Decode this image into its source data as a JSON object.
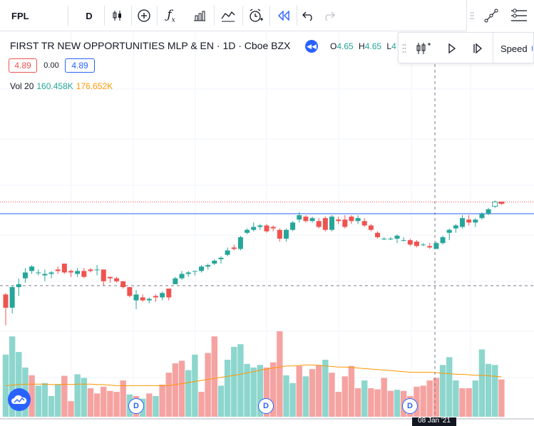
{
  "toolbar": {
    "symbol": "FPL",
    "interval": "D",
    "icons": [
      "candles-icon",
      "add-compare-icon",
      "indicators-icon",
      "financials-icon",
      "templates-icon",
      "alert-icon",
      "replay-icon",
      "undo-icon",
      "redo-icon"
    ]
  },
  "legend": {
    "title": "FIRST TR NEW OPPORTUNITIES MLP & EN · 1D · Cboe BZX",
    "o_label": "O",
    "o_value": "4.65",
    "h_label": "H",
    "h_value": "4.65",
    "l_label": "L",
    "l_value": "4"
  },
  "quote": {
    "bid": "4.89",
    "spread": "0.00",
    "ask": "4.89"
  },
  "volume_legend": {
    "label": "Vol 20",
    "value1": "160.458K",
    "value2": "176.652K"
  },
  "replay": {
    "speed_label": "Speed"
  },
  "markers": {
    "d1": "D",
    "d2": "D",
    "d3": "D"
  },
  "axis": {
    "date_tag": "08 Jan '21"
  },
  "colors": {
    "up": "#26a69a",
    "down": "#ef5350",
    "vol_up": "#8dd6cd",
    "vol_down": "#f5a3a1",
    "ma": "#ff9800",
    "accent": "#2962ff"
  },
  "chart_data": {
    "type": "candlestick",
    "candles": [
      [
        4.26,
        4.27,
        4.05,
        4.17
      ],
      [
        4.17,
        4.32,
        4.13,
        4.31
      ],
      [
        4.31,
        4.37,
        4.25,
        4.33
      ],
      [
        4.37,
        4.44,
        4.34,
        4.41
      ],
      [
        4.42,
        4.46,
        4.4,
        4.45
      ],
      [
        4.41,
        4.43,
        4.39,
        4.41
      ],
      [
        4.39,
        4.43,
        4.35,
        4.4
      ],
      [
        4.4,
        4.42,
        4.37,
        4.41
      ],
      [
        4.43,
        4.45,
        4.4,
        4.42
      ],
      [
        4.47,
        4.47,
        4.4,
        4.41
      ],
      [
        4.42,
        4.43,
        4.38,
        4.41
      ],
      [
        4.4,
        4.44,
        4.38,
        4.42
      ],
      [
        4.42,
        4.44,
        4.37,
        4.38
      ],
      [
        4.43,
        4.44,
        4.41,
        4.42
      ],
      [
        4.43,
        4.46,
        4.39,
        4.43
      ],
      [
        4.43,
        4.43,
        4.32,
        4.35
      ],
      [
        4.38,
        4.38,
        4.34,
        4.37
      ],
      [
        4.37,
        4.38,
        4.34,
        4.35
      ],
      [
        4.35,
        4.35,
        4.3,
        4.31
      ],
      [
        4.31,
        4.31,
        4.24,
        4.25
      ],
      [
        4.22,
        4.29,
        4.16,
        4.26
      ],
      [
        4.24,
        4.26,
        4.21,
        4.22
      ],
      [
        4.22,
        4.24,
        4.2,
        4.23
      ],
      [
        4.25,
        4.26,
        4.21,
        4.24
      ],
      [
        4.24,
        4.28,
        4.22,
        4.27
      ],
      [
        4.3,
        4.3,
        4.22,
        4.24
      ],
      [
        4.33,
        4.38,
        4.33,
        4.37
      ],
      [
        4.37,
        4.42,
        4.36,
        4.4
      ],
      [
        4.4,
        4.42,
        4.38,
        4.41
      ],
      [
        4.42,
        4.42,
        4.39,
        4.42
      ],
      [
        4.42,
        4.46,
        4.41,
        4.45
      ],
      [
        4.45,
        4.47,
        4.43,
        4.46
      ],
      [
        4.47,
        4.5,
        4.46,
        4.49
      ],
      [
        4.5,
        4.52,
        4.47,
        4.51
      ],
      [
        4.53,
        4.58,
        4.52,
        4.56
      ],
      [
        4.58,
        4.6,
        4.56,
        4.57
      ],
      [
        4.57,
        4.66,
        4.56,
        4.65
      ],
      [
        4.68,
        4.71,
        4.67,
        4.7
      ],
      [
        4.7,
        4.75,
        4.69,
        4.72
      ],
      [
        4.72,
        4.74,
        4.7,
        4.73
      ],
      [
        4.73,
        4.74,
        4.68,
        4.69
      ],
      [
        4.72,
        4.73,
        4.69,
        4.71
      ],
      [
        4.7,
        4.71,
        4.62,
        4.64
      ],
      [
        4.64,
        4.71,
        4.62,
        4.7
      ],
      [
        4.7,
        4.76,
        4.69,
        4.75
      ],
      [
        4.77,
        4.82,
        4.75,
        4.8
      ],
      [
        4.79,
        4.8,
        4.75,
        4.76
      ],
      [
        4.76,
        4.79,
        4.75,
        4.78
      ],
      [
        4.76,
        4.78,
        4.71,
        4.72
      ],
      [
        4.78,
        4.79,
        4.69,
        4.7
      ],
      [
        4.7,
        4.8,
        4.69,
        4.79
      ],
      [
        4.77,
        4.79,
        4.74,
        4.76
      ],
      [
        4.77,
        4.8,
        4.71,
        4.72
      ],
      [
        4.79,
        4.8,
        4.74,
        4.76
      ],
      [
        4.76,
        4.8,
        4.74,
        4.78
      ],
      [
        4.76,
        4.78,
        4.72,
        4.73
      ],
      [
        4.73,
        4.74,
        4.69,
        4.7
      ],
      [
        4.68,
        4.69,
        4.64,
        4.65
      ],
      [
        4.64,
        4.65,
        4.63,
        4.64
      ],
      [
        4.64,
        4.65,
        4.63,
        4.64
      ],
      [
        4.64,
        4.67,
        4.61,
        4.66
      ],
      [
        4.63,
        4.65,
        4.62,
        4.63
      ],
      [
        4.63,
        4.64,
        4.59,
        4.6
      ],
      [
        4.62,
        4.63,
        4.58,
        4.59
      ],
      [
        4.6,
        4.61,
        4.59,
        4.6
      ],
      [
        4.59,
        4.61,
        4.57,
        4.58
      ],
      [
        4.57,
        4.62,
        4.57,
        4.61
      ],
      [
        4.61,
        4.66,
        4.6,
        4.65
      ],
      [
        4.68,
        4.71,
        4.63,
        4.7
      ],
      [
        4.71,
        4.74,
        4.68,
        4.73
      ],
      [
        4.72,
        4.8,
        4.71,
        4.78
      ],
      [
        4.77,
        4.8,
        4.73,
        4.75
      ],
      [
        4.75,
        4.78,
        4.72,
        4.77
      ],
      [
        4.78,
        4.82,
        4.77,
        4.81
      ],
      [
        4.81,
        4.85,
        4.8,
        4.84
      ],
      [
        4.86,
        4.9,
        4.85,
        4.89
      ],
      [
        4.89,
        4.89,
        4.87,
        4.88
      ]
    ],
    "volumes": [
      [
        120,
        "up"
      ],
      [
        155,
        "up"
      ],
      [
        125,
        "up"
      ],
      [
        95,
        "up"
      ],
      [
        80,
        "down"
      ],
      [
        60,
        "up"
      ],
      [
        65,
        "up"
      ],
      [
        40,
        "up"
      ],
      [
        63,
        "up"
      ],
      [
        79,
        "down"
      ],
      [
        30,
        "down"
      ],
      [
        82,
        "up"
      ],
      [
        75,
        "up"
      ],
      [
        55,
        "down"
      ],
      [
        45,
        "down"
      ],
      [
        58,
        "down"
      ],
      [
        50,
        "down"
      ],
      [
        48,
        "down"
      ],
      [
        70,
        "down"
      ],
      [
        43,
        "up"
      ],
      [
        40,
        "down"
      ],
      [
        35,
        "up"
      ],
      [
        45,
        "down"
      ],
      [
        40,
        "up"
      ],
      [
        62,
        "down"
      ],
      [
        85,
        "down"
      ],
      [
        103,
        "down"
      ],
      [
        108,
        "down"
      ],
      [
        90,
        "up"
      ],
      [
        120,
        "up"
      ],
      [
        48,
        "down"
      ],
      [
        123,
        "down"
      ],
      [
        155,
        "down"
      ],
      [
        60,
        "up"
      ],
      [
        110,
        "up"
      ],
      [
        135,
        "up"
      ],
      [
        140,
        "up"
      ],
      [
        102,
        "up"
      ],
      [
        95,
        "up"
      ],
      [
        100,
        "up"
      ],
      [
        95,
        "down"
      ],
      [
        105,
        "down"
      ],
      [
        165,
        "down"
      ],
      [
        80,
        "up"
      ],
      [
        65,
        "up"
      ],
      [
        98,
        "down"
      ],
      [
        78,
        "up"
      ],
      [
        92,
        "down"
      ],
      [
        100,
        "down"
      ],
      [
        110,
        "up"
      ],
      [
        85,
        "down"
      ],
      [
        48,
        "down"
      ],
      [
        78,
        "down"
      ],
      [
        98,
        "down"
      ],
      [
        55,
        "down"
      ],
      [
        70,
        "up"
      ],
      [
        55,
        "down"
      ],
      [
        53,
        "down"
      ],
      [
        75,
        "down"
      ],
      [
        50,
        "down"
      ],
      [
        52,
        "up"
      ],
      [
        50,
        "down"
      ],
      [
        40,
        "down"
      ],
      [
        58,
        "down"
      ],
      [
        60,
        "down"
      ],
      [
        70,
        "down"
      ],
      [
        75,
        "down"
      ],
      [
        100,
        "up"
      ],
      [
        115,
        "up"
      ],
      [
        70,
        "up"
      ],
      [
        55,
        "down"
      ],
      [
        55,
        "down"
      ],
      [
        70,
        "up"
      ],
      [
        130,
        "up"
      ],
      [
        102,
        "up"
      ],
      [
        100,
        "up"
      ],
      [
        72,
        "down"
      ]
    ],
    "ma_volume": [
      60,
      61,
      62,
      63,
      63,
      63,
      63,
      62,
      62,
      63,
      62,
      63,
      63,
      63,
      62,
      62,
      61,
      60,
      60,
      60,
      60,
      60,
      60,
      60,
      60,
      60,
      62,
      64,
      66,
      68,
      70,
      72,
      74,
      76,
      78,
      80,
      82,
      85,
      87,
      90,
      92,
      94,
      96,
      98,
      98,
      99,
      100,
      100,
      99,
      98,
      97,
      96,
      96,
      95,
      94,
      93,
      92,
      91,
      90,
      89,
      88,
      87,
      86,
      86,
      86,
      86,
      85,
      84,
      83,
      82,
      82,
      81,
      80,
      80,
      79,
      78,
      77
    ],
    "price_line": 4.81,
    "prev_close_line": 4.89,
    "dashed_h_line": 4.32,
    "ylim": [
      4.0,
      5.2
    ]
  }
}
